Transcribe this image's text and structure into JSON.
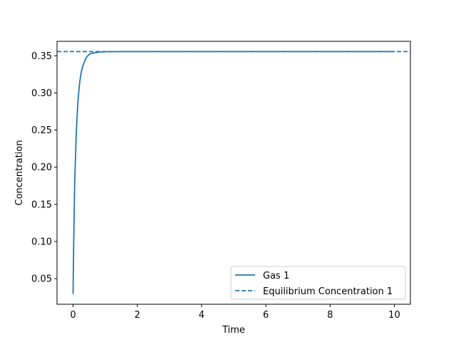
{
  "chart_data": {
    "type": "line",
    "title": "",
    "xlabel": "Time",
    "ylabel": "Concentration",
    "xlim": [
      -0.5,
      10.5
    ],
    "ylim": [
      0.0155,
      0.3695
    ],
    "x_ticks": [
      0,
      2,
      4,
      6,
      8,
      10
    ],
    "x_tick_labels": [
      "0",
      "2",
      "4",
      "6",
      "8",
      "10"
    ],
    "y_ticks": [
      0.05,
      0.1,
      0.15,
      0.2,
      0.25,
      0.3,
      0.35
    ],
    "y_tick_labels": [
      "0.05",
      "0.10",
      "0.15",
      "0.20",
      "0.25",
      "0.30",
      "0.35"
    ],
    "grid": false,
    "legend_position": "lower-right",
    "colors": {
      "series": "#1f77b4",
      "axes": "#000000",
      "background": "#ffffff",
      "legend_border": "#cccccc"
    },
    "series": [
      {
        "name": "Gas 1",
        "style": "solid",
        "x": [
          0,
          0.02,
          0.05,
          0.1,
          0.15,
          0.2,
          0.25,
          0.3,
          0.4,
          0.5,
          0.6,
          0.8,
          1.0,
          1.5,
          2,
          3,
          4,
          5,
          6,
          7,
          8,
          9,
          10
        ],
        "y": [
          0.03,
          0.1,
          0.179,
          0.247,
          0.288,
          0.312,
          0.327,
          0.336,
          0.347,
          0.352,
          0.3535,
          0.355,
          0.3555,
          0.3557,
          0.3557,
          0.3557,
          0.3557,
          0.3557,
          0.3557,
          0.3557,
          0.3557,
          0.3557,
          0.3557
        ]
      },
      {
        "name": "Equilibrium Concentration 1",
        "style": "dashed",
        "type": "hline",
        "y": 0.3557
      }
    ]
  }
}
